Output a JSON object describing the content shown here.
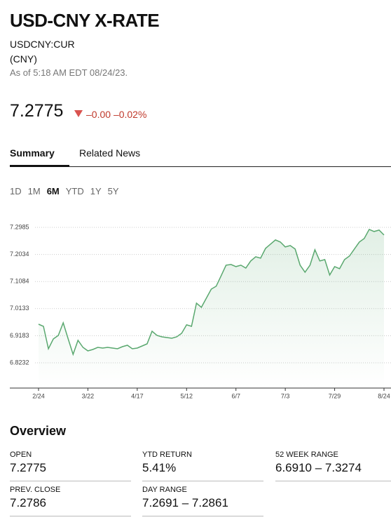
{
  "header": {
    "title": "USD-CNY X-RATE",
    "ticker": "USDCNY:CUR",
    "currency": "(CNY)",
    "as_of": "As of 5:18 AM EDT 08/24/23."
  },
  "quote": {
    "price": "7.2775",
    "change": "–0.00",
    "change_percent": "–0.02%"
  },
  "tabs": [
    "Summary",
    "Related News"
  ],
  "ranges": [
    "1D",
    "1M",
    "6M",
    "YTD",
    "1Y",
    "5Y"
  ],
  "active_range": 2,
  "chart_data": {
    "type": "line",
    "color": "#5aa86f",
    "grid": true,
    "categories": [
      "2/24",
      null,
      null,
      null,
      null,
      null,
      null,
      null,
      null,
      null,
      "3/22",
      null,
      null,
      null,
      null,
      null,
      null,
      null,
      null,
      null,
      "4/17",
      null,
      null,
      null,
      null,
      null,
      null,
      null,
      null,
      null,
      "5/12",
      null,
      null,
      null,
      null,
      null,
      null,
      null,
      null,
      null,
      "6/7",
      null,
      null,
      null,
      null,
      null,
      null,
      null,
      null,
      null,
      "7/3",
      null,
      null,
      null,
      null,
      null,
      null,
      null,
      null,
      null,
      "7/29",
      null,
      null,
      null,
      null,
      null,
      null,
      null,
      null,
      null,
      "8/24"
    ],
    "values": [
      6.9587,
      6.9513,
      6.8725,
      6.907,
      6.9193,
      6.9636,
      6.907,
      6.8528,
      6.902,
      6.8774,
      6.8651,
      6.87,
      6.8774,
      6.8749,
      6.8774,
      6.8749,
      6.8725,
      6.8799,
      6.8848,
      6.8725,
      6.8749,
      6.8823,
      6.8897,
      6.9341,
      6.9193,
      6.9144,
      6.9119,
      6.9094,
      6.9144,
      6.9267,
      6.9563,
      6.9513,
      7.0326,
      7.0179,
      7.0499,
      7.0819,
      7.0918,
      7.1288,
      7.1657,
      7.1682,
      7.1608,
      7.1657,
      7.1558,
      7.1805,
      7.1953,
      7.1903,
      7.2248,
      7.2396,
      7.2544,
      7.247,
      7.2298,
      7.2347,
      7.2224,
      7.1657,
      7.1411,
      7.1657,
      7.2199,
      7.1805,
      7.1854,
      7.1312,
      7.1608,
      7.1534,
      7.1854,
      7.1977,
      7.2224,
      7.247,
      7.2593,
      7.2914,
      7.284,
      7.2889,
      7.2716
    ],
    "ylim": [
      6.7345,
      7.3207
    ],
    "yticks": [
      6.8232,
      6.9183,
      7.0133,
      7.1084,
      7.2034,
      7.2985
    ]
  },
  "overview": {
    "title": "Overview",
    "items": [
      {
        "label": "OPEN",
        "value": "7.2775"
      },
      {
        "label": "YTD RETURN",
        "value": "5.41%"
      },
      {
        "label": "52 WEEK RANGE",
        "value": "6.6910 – 7.3274"
      },
      {
        "label": "PREV. CLOSE",
        "value": "7.2786"
      },
      {
        "label": "DAY RANGE",
        "value": "7.2691 – 7.2861"
      }
    ]
  }
}
